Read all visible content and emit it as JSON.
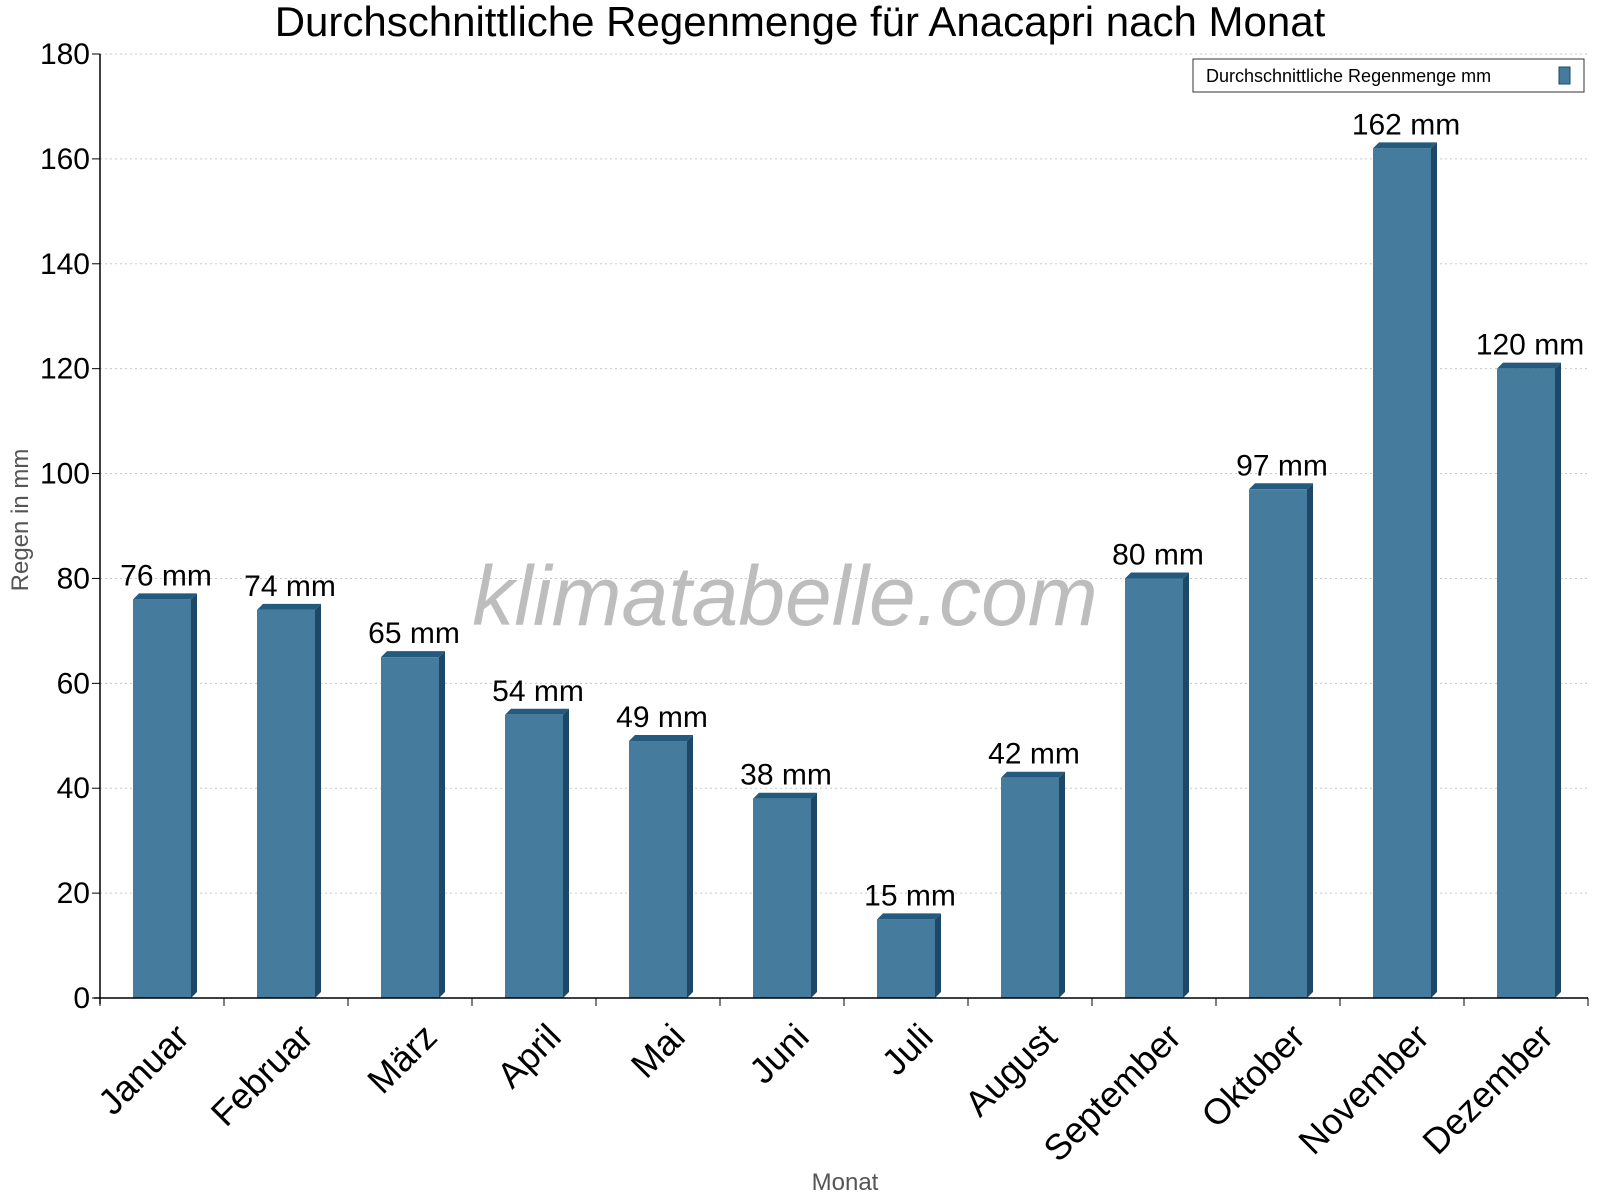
{
  "chart_data": {
    "type": "bar",
    "title": "Durchschnittliche Regenmenge für Anacapri nach Monat",
    "xlabel": "Monat",
    "ylabel": "Regen in mm",
    "ylim": [
      0,
      180
    ],
    "yticks": [
      0,
      20,
      40,
      60,
      80,
      100,
      120,
      140,
      160,
      180
    ],
    "grid": true,
    "legend_position": "top-right",
    "watermark": "klimatabelle.com",
    "categories": [
      "Januar",
      "Februar",
      "März",
      "April",
      "Mai",
      "Juni",
      "Juli",
      "August",
      "September",
      "Oktober",
      "November",
      "Dezember"
    ],
    "series": [
      {
        "name": "Durchschnittliche Regenmenge mm",
        "color": "#457b9d",
        "values": [
          76,
          74,
          65,
          54,
          49,
          38,
          15,
          42,
          80,
          97,
          162,
          120
        ],
        "labels": [
          "76 mm",
          "74 mm",
          "65 mm",
          "54 mm",
          "49 mm",
          "38 mm",
          "15 mm",
          "42 mm",
          "80 mm",
          "97 mm",
          "162 mm",
          "120 mm"
        ]
      }
    ]
  }
}
